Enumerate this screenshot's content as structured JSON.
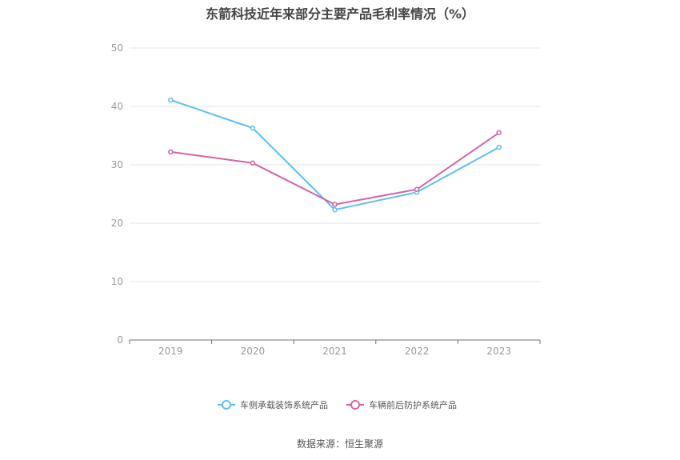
{
  "chart_data": {
    "type": "line",
    "title": "东箭科技近年来部分主要产品毛利率情况（%）",
    "categories": [
      "2019",
      "2020",
      "2021",
      "2022",
      "2023"
    ],
    "ylim": [
      0,
      50
    ],
    "yticks": [
      0,
      10,
      20,
      30,
      40,
      50
    ],
    "grid": true,
    "legend_position": "bottom",
    "series": [
      {
        "name": "车侧承载装饰系统产品",
        "values": [
          41.1,
          36.3,
          22.3,
          25.3,
          33.0
        ],
        "color": "#5bc0f0"
      },
      {
        "name": "车辆前后防护系统产品",
        "values": [
          32.2,
          30.3,
          23.2,
          25.8,
          35.5
        ],
        "color": "#d464a6"
      }
    ]
  },
  "footer": {
    "source": "数据来源：恒生聚源"
  }
}
